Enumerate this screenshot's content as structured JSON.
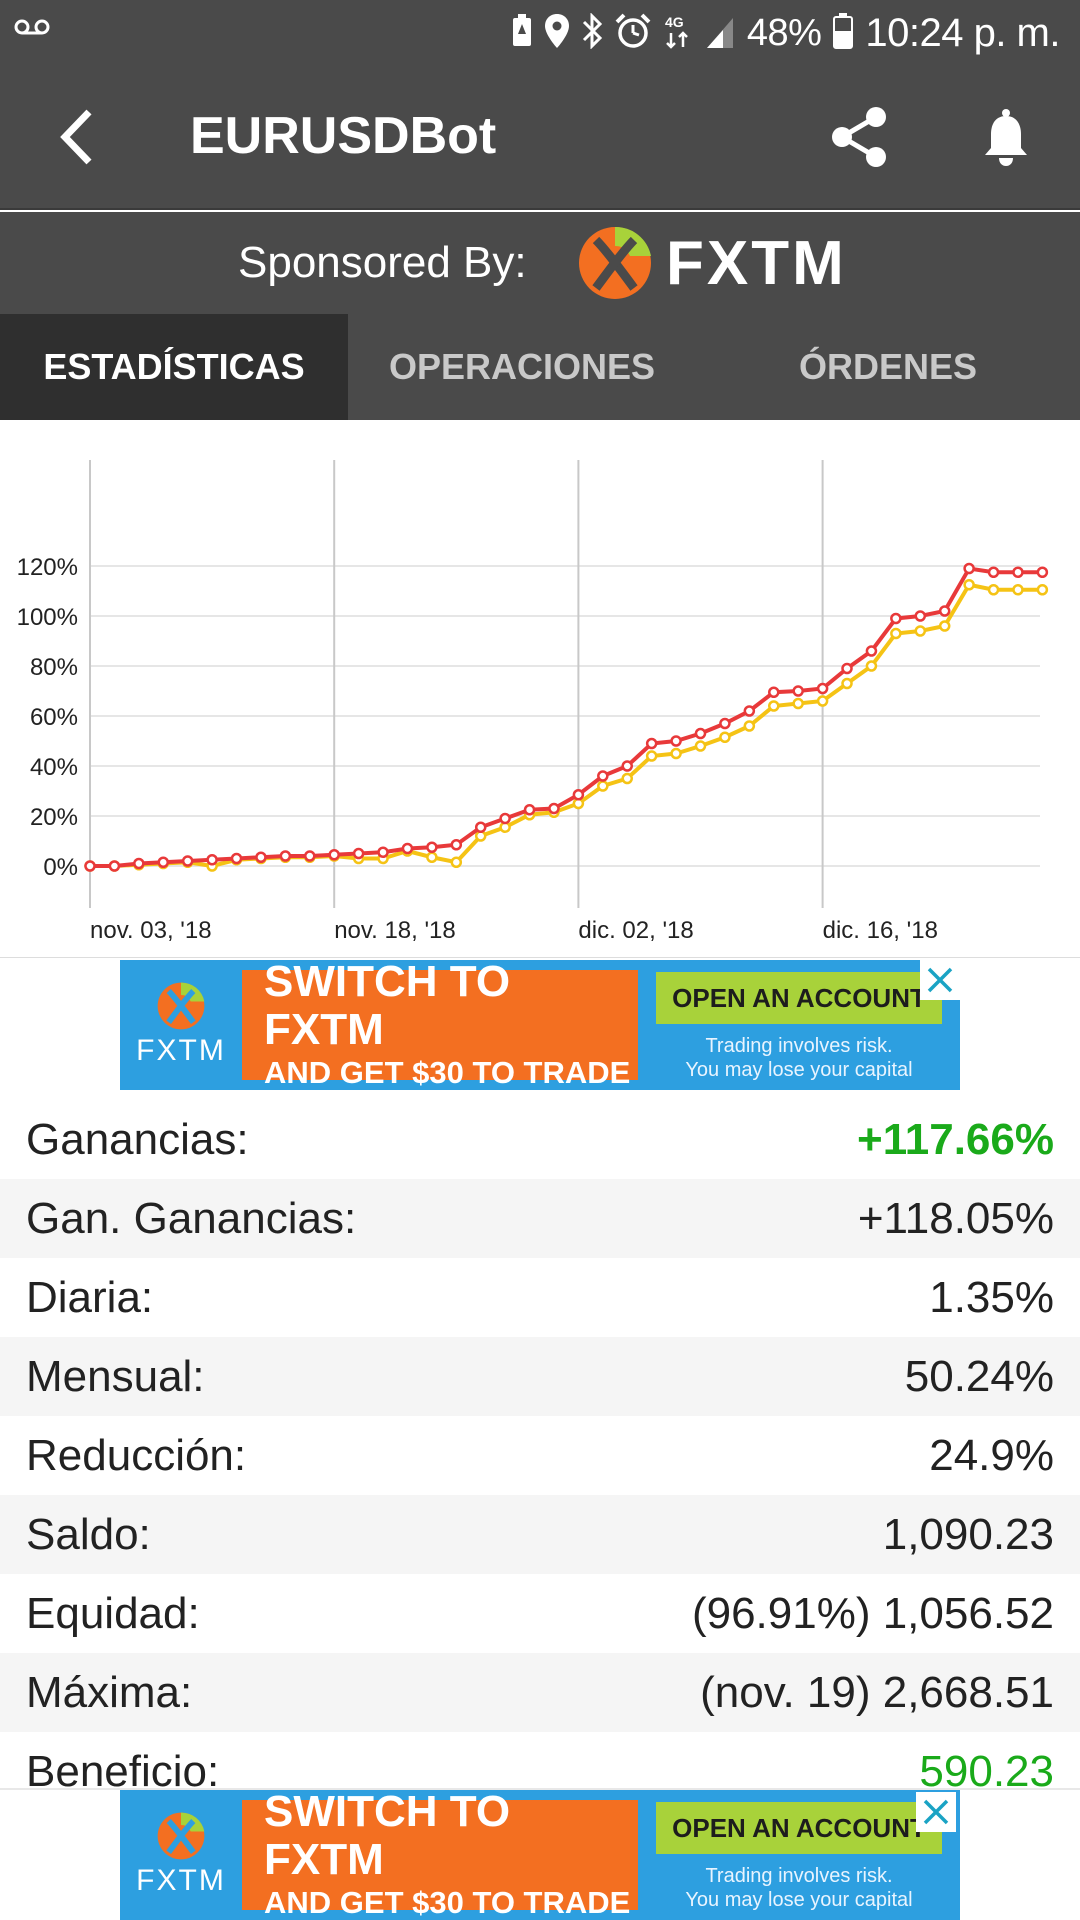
{
  "status_bar": {
    "icons": [
      "voicemail-icon",
      "battery-saver-icon",
      "location-icon",
      "bluetooth-icon",
      "alarm-icon",
      "network-4g-icon",
      "signal-icon",
      "battery-icon"
    ],
    "network": "4G",
    "battery": "48%",
    "time": "10:24 p. m."
  },
  "app_bar": {
    "title": "EURUSDBot",
    "back_icon": "chevron-left-icon",
    "share_icon": "share-icon",
    "bell_icon": "bell-icon"
  },
  "sponsor": {
    "label": "Sponsored By:",
    "brand": "FXTM"
  },
  "tabs": [
    {
      "label": "ESTADÍSTICAS",
      "active": true
    },
    {
      "label": "OPERACIONES",
      "active": false
    },
    {
      "label": "ÓRDENES",
      "active": false
    }
  ],
  "chart_data": {
    "type": "line",
    "ylim": [
      -5,
      130
    ],
    "y_ticks": [
      "120%",
      "100%",
      "80%",
      "60%",
      "40%",
      "20%",
      "0%"
    ],
    "y_tick_values": [
      120,
      100,
      80,
      60,
      40,
      20,
      0
    ],
    "x_ticks": [
      "nov. 03, '18",
      "nov. 18, '18",
      "dic. 02, '18",
      "dic. 16, '18"
    ],
    "x_tick_index": [
      0,
      10,
      20,
      30
    ],
    "grid": true,
    "colors": {
      "series_red": "#e8393a",
      "series_yellow": "#f5c315"
    },
    "series": [
      {
        "values": [
          0,
          0,
          1,
          1.5,
          2,
          2.5,
          3,
          3.5,
          4,
          4,
          4.5,
          5,
          5.5,
          7,
          7.5,
          8.5,
          15.5,
          19,
          22.5,
          23,
          28.5,
          36,
          40,
          49,
          50,
          53,
          57,
          62,
          69.5,
          70,
          71,
          79,
          86,
          99,
          100,
          102,
          119,
          117.5,
          117.5,
          117.5
        ]
      },
      {
        "values": [
          0,
          0,
          0.5,
          1,
          1.5,
          0,
          2.5,
          3,
          3.5,
          3.5,
          4,
          3,
          3,
          6,
          3.5,
          1.5,
          12,
          15.5,
          20.5,
          21.5,
          25,
          32,
          35,
          44,
          45,
          48,
          51.5,
          56,
          64,
          65,
          66,
          73,
          80,
          93,
          94,
          96,
          112.5,
          110.5,
          110.5,
          110.5
        ]
      }
    ]
  },
  "ad": {
    "brand": "FXTM",
    "headline1": "SWITCH TO FXTM",
    "headline2": "AND GET $30 TO TRADE",
    "cta": "OPEN AN ACCOUNT",
    "risk1": "Trading involves risk.",
    "risk2": "You may lose your capital",
    "close_icon": "close-icon"
  },
  "stats": [
    {
      "label": "Ganancias:",
      "value": "+117.66%",
      "style": "green-bold"
    },
    {
      "label": "Gan. Ganancias:",
      "value": "+118.05%",
      "style": ""
    },
    {
      "label": "Diaria:",
      "value": "1.35%",
      "style": ""
    },
    {
      "label": "Mensual:",
      "value": "50.24%",
      "style": ""
    },
    {
      "label": "Reducción:",
      "value": "24.9%",
      "style": ""
    },
    {
      "label": "Saldo:",
      "value": "1,090.23",
      "style": ""
    },
    {
      "label": "Equidad:",
      "value": "(96.91%) 1,056.52",
      "style": ""
    },
    {
      "label": "Máxima:",
      "value": "(nov. 19) 2,668.51",
      "style": ""
    },
    {
      "label": "Beneficio:",
      "value": "590.23",
      "style": "green"
    }
  ]
}
